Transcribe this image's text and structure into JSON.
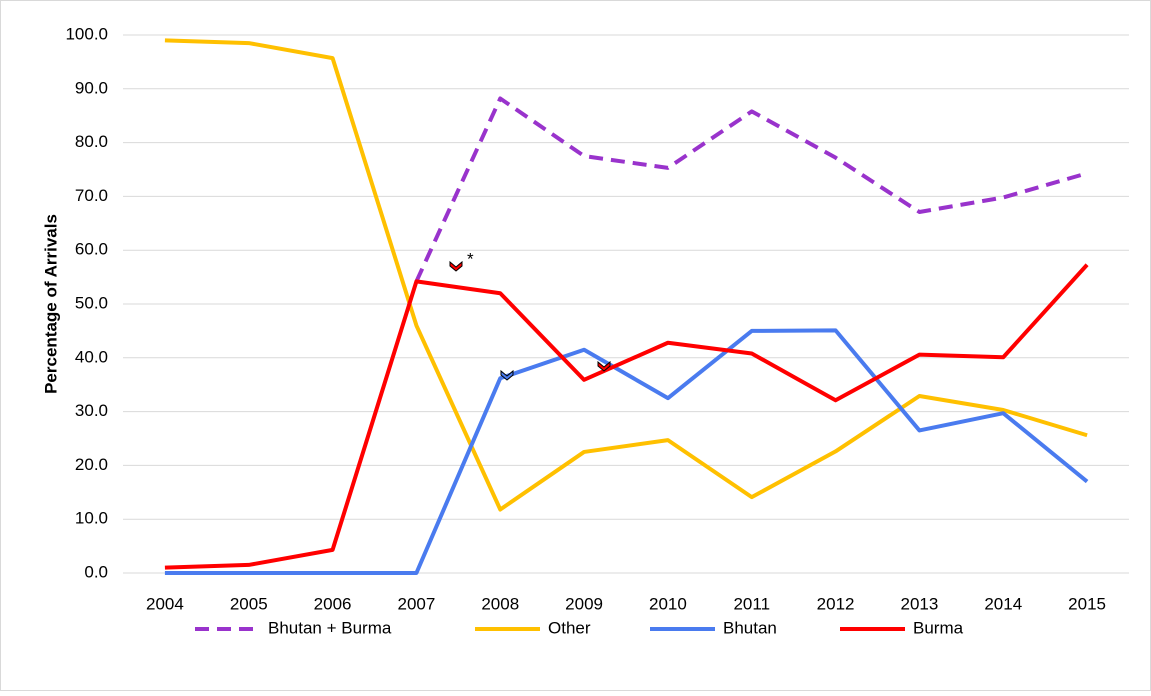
{
  "chart_data": {
    "type": "line",
    "y_label": "Percentage of Arrivals",
    "categories": [
      "2004",
      "2005",
      "2006",
      "2007",
      "2008",
      "2009",
      "2010",
      "2011",
      "2012",
      "2013",
      "2014",
      "2015"
    ],
    "series": [
      {
        "name": "Bhutan + Burma",
        "color": "#9933cc",
        "dashed": true,
        "values": [
          null,
          null,
          null,
          54.2,
          88.2,
          77.5,
          75.3,
          85.8,
          77.2,
          67.1,
          69.8,
          74.3
        ]
      },
      {
        "name": "Other",
        "color": "#ffc000",
        "dashed": false,
        "values": [
          99.0,
          98.5,
          95.7,
          46.0,
          11.8,
          22.5,
          24.7,
          14.1,
          22.6,
          32.9,
          30.3,
          25.6
        ]
      },
      {
        "name": "Bhutan",
        "color": "#4a7bef",
        "dashed": false,
        "values": [
          0.0,
          0.0,
          0.0,
          0.0,
          36.2,
          41.5,
          32.5,
          45.0,
          45.1,
          26.5,
          29.7,
          17.0
        ]
      },
      {
        "name": "Burma",
        "color": "#ff0000",
        "dashed": false,
        "values": [
          1.0,
          1.5,
          4.3,
          54.2,
          52.0,
          35.9,
          42.8,
          40.8,
          32.1,
          40.6,
          40.1,
          57.3
        ]
      }
    ],
    "annotation": "*",
    "ylim": [
      0,
      100
    ],
    "yticks": [
      {
        "value": 0,
        "label": "0.0"
      },
      {
        "value": 10,
        "label": "10.0"
      },
      {
        "value": 20,
        "label": "20.0"
      },
      {
        "value": 30,
        "label": "30.0"
      },
      {
        "value": 40,
        "label": "40.0"
      },
      {
        "value": 50,
        "label": "50.0"
      },
      {
        "value": 60,
        "label": "60.0"
      },
      {
        "value": 70,
        "label": "70.0"
      },
      {
        "value": 80,
        "label": "80.0"
      },
      {
        "value": 90,
        "label": "90.0"
      },
      {
        "value": 100,
        "label": "100.0"
      }
    ],
    "grid": true,
    "legend": "bottom"
  }
}
